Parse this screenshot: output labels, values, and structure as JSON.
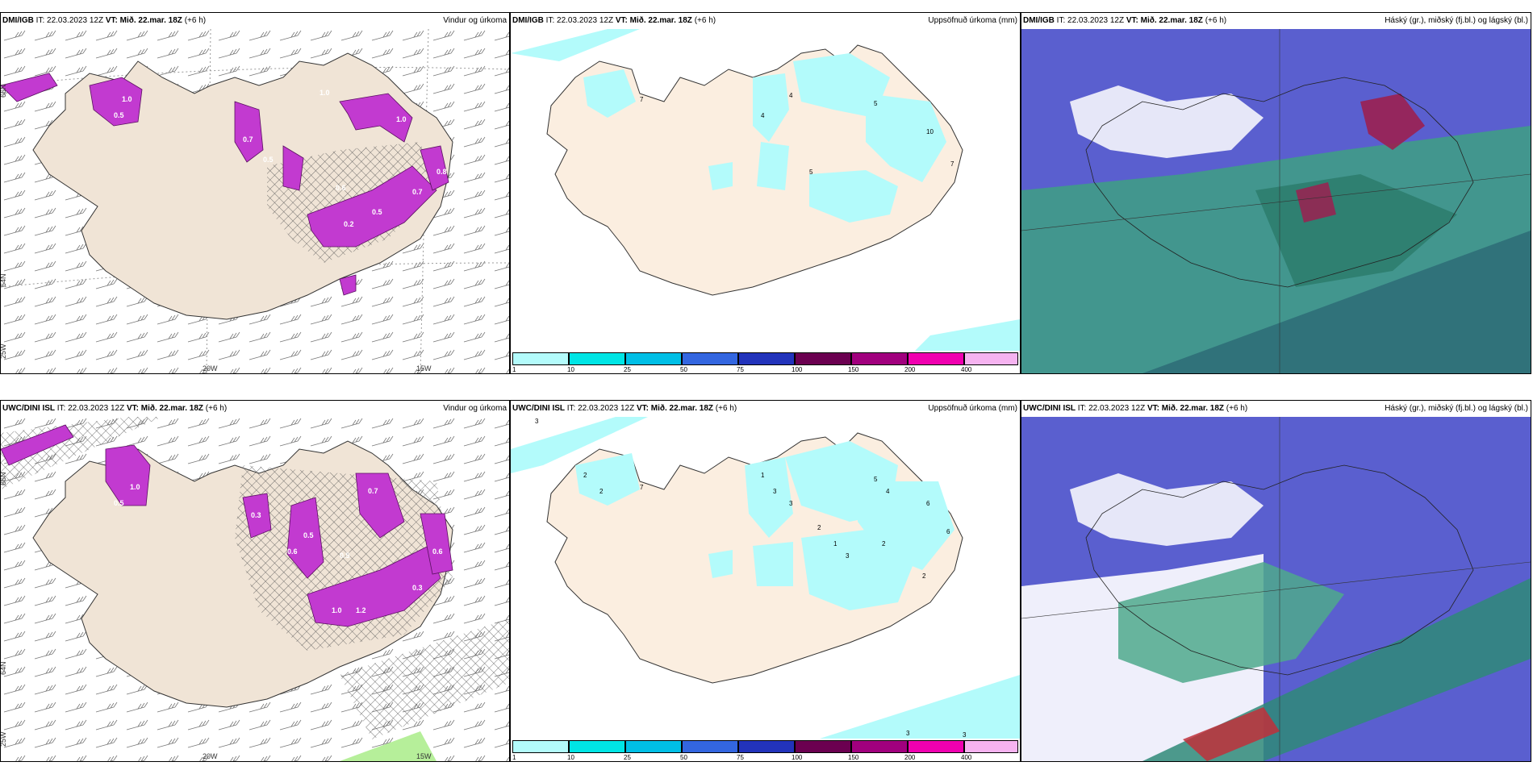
{
  "rows": [
    {
      "source": "DMI/IGB",
      "it_label": "IT:",
      "it_value": "22.03.2023 12Z",
      "vt_label": "VT:",
      "vt_value": "Mið. 22.mar. 18Z",
      "lead": "(+6 h)"
    },
    {
      "source": "UWC/DINI ISL",
      "it_label": "IT:",
      "it_value": "22.03.2023 12Z",
      "vt_label": "VT:",
      "vt_value": "Mið. 22.mar. 18Z",
      "lead": "(+6 h)"
    }
  ],
  "panel_titles": {
    "wind": "Vindur og úrkoma",
    "precip": "Uppsöfnuð úrkoma (mm)",
    "cloud": "Háský (gr.), miðský (fj.bl.) og lágský (bl.)"
  },
  "axis_labels": {
    "lon_20w": "20W",
    "lon_15w": "15W",
    "lon_25w": "25W",
    "lat_66n": "66N",
    "lat_64n": "64N"
  },
  "wind_values_top": [
    "1.0",
    "0.5",
    "0.7",
    "1.0",
    "1.0",
    "0.5",
    "0.2",
    "0.5",
    "0.7",
    "0.8",
    "0.6"
  ],
  "wind_values_bottom": [
    "1.0",
    "0.5",
    "0.3",
    "0.7",
    "0.5",
    "0.6",
    "0.5",
    "1.0",
    "1.2",
    "0.3",
    "0.6"
  ],
  "precip_numbers_top": [
    "7",
    "4",
    "4",
    "5",
    "10",
    "7",
    "5"
  ],
  "precip_numbers_bottom": [
    "3",
    "2",
    "2",
    "7",
    "1",
    "3",
    "3",
    "5",
    "4",
    "6",
    "2",
    "1",
    "3",
    "2",
    "6",
    "2",
    "3",
    "3"
  ],
  "colorbar": {
    "colors": [
      "#b3fbfb",
      "#00e5e5",
      "#00bfe6",
      "#3366e0",
      "#2233bb",
      "#6b0050",
      "#a1007e",
      "#f000b0",
      "#f6b3f0"
    ],
    "ticks": [
      "1",
      "10",
      "25",
      "50",
      "75",
      "100",
      "150",
      "200",
      "400"
    ]
  },
  "colors": {
    "land": "#f0e4d6",
    "land_precip": "#fbeee0",
    "precip_light": "#b3fbfb",
    "wind_precip": "#c23ad0",
    "cloud_high": "#5a5fcf",
    "cloud_mid": "#3f9c86",
    "cloud_low": "#2f6e78"
  }
}
